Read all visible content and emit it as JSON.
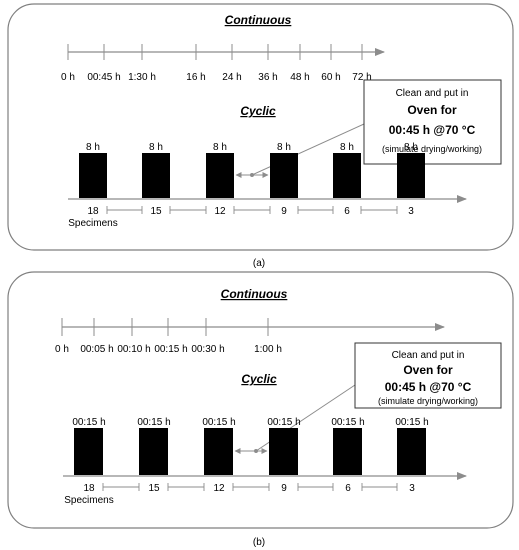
{
  "panels": [
    {
      "caption": "(a)",
      "continuous": {
        "title": "Continuous",
        "ticks": [
          "0 h",
          "00:45 h",
          "1:30 h",
          "16 h",
          "24 h",
          "36 h",
          "48 h",
          "60 h",
          "72 h"
        ]
      },
      "cyclic": {
        "title": "Cyclic",
        "block_labels": [
          "8 h",
          "8 h",
          "8 h",
          "8 h",
          "8 h",
          "8 h"
        ],
        "specimen_counts": [
          "18",
          "15",
          "12",
          "9",
          "6",
          "3"
        ],
        "specimens_label": "Specimens"
      },
      "callout": {
        "line1": "Clean and put in",
        "line2": "Oven for",
        "line3": "00:45 h @70 °C",
        "line4": "(simulate drying/working)"
      }
    },
    {
      "caption": "(b)",
      "continuous": {
        "title": "Continuous",
        "ticks": [
          "0 h",
          "00:05 h",
          "00:10 h",
          "00:15 h",
          "00:30 h",
          "1:00 h"
        ]
      },
      "cyclic": {
        "title": "Cyclic",
        "block_labels": [
          "00:15 h",
          "00:15 h",
          "00:15 h",
          "00:15 h",
          "00:15 h",
          "00:15 h"
        ],
        "specimen_counts": [
          "18",
          "15",
          "12",
          "9",
          "6",
          "3"
        ],
        "specimens_label": "Specimens"
      },
      "callout": {
        "line1": "Clean and put in",
        "line2": "Oven for",
        "line3": "00:45 h @70 °C",
        "line4": "(simulate drying/working)"
      }
    }
  ]
}
